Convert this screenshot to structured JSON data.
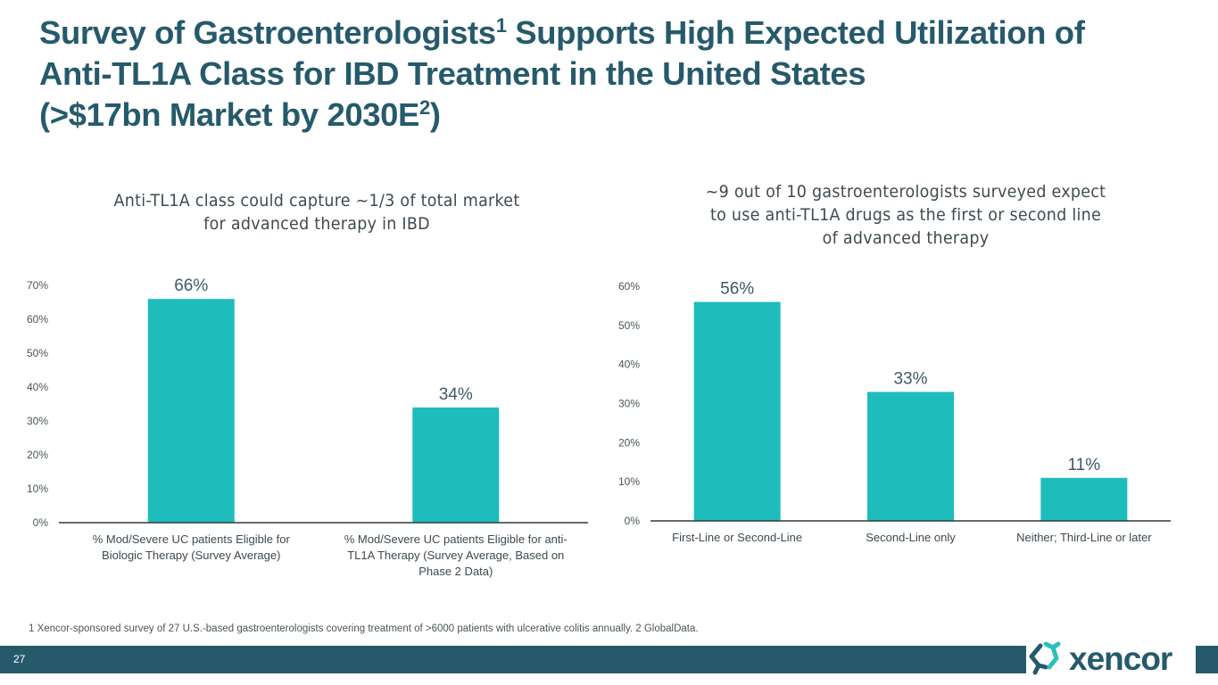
{
  "slide": {
    "title": {
      "line1_a": "Survey of Gastroenterologists",
      "line1_sup": "1",
      "line1_b": " Supports High Expected Utilization of",
      "line2": "Anti-TL1A Class for IBD Treatment in the United States",
      "line3_a": "(>$17bn Market by 2030E",
      "line3_sup": "2",
      "line3_b": ")"
    },
    "footnote": "1 Xencor-sponsored survey of 27 U.S.-based gastroenterologists covering treatment of >6000 patients with ulcerative colitis annually.  2 GlobalData.",
    "page_number": "27",
    "logo_text": "xencor",
    "colors": {
      "title": "#265a6b",
      "bar": "#1fbcbc",
      "footer_bar": "#265a6b",
      "logo_accent": "#2bbfbd"
    }
  },
  "chart_data": [
    {
      "type": "bar",
      "title_lines": [
        "Anti-TL1A class could capture ~1/3 of total market",
        "for advanced therapy in IBD"
      ],
      "categories": [
        [
          "%  Mod/Severe UC patients Eligible for",
          "Biologic Therapy (Survey Average)"
        ],
        [
          "%  Mod/Severe UC patients Eligible for anti-",
          "TL1A Therapy (Survey Average, Based on",
          "Phase 2 Data)"
        ]
      ],
      "values": [
        66,
        34
      ],
      "data_labels": [
        "66%",
        "34%"
      ],
      "ylim": [
        0,
        70
      ],
      "yticks": [
        0,
        10,
        20,
        30,
        40,
        50,
        60,
        70
      ],
      "ytick_labels": [
        "0%",
        "10%",
        "20%",
        "30%",
        "40%",
        "50%",
        "60%",
        "70%"
      ],
      "xlabel": "",
      "ylabel": "",
      "grid": false,
      "legend": "none"
    },
    {
      "type": "bar",
      "title_lines": [
        "~9 out of 10 gastroenterologists surveyed expect",
        "to use anti-TL1A drugs as the first or second line",
        "of advanced therapy"
      ],
      "categories": [
        [
          "First-Line or Second-Line"
        ],
        [
          "Second-Line only"
        ],
        [
          "Neither; Third-Line or later"
        ]
      ],
      "values": [
        56,
        33,
        11
      ],
      "data_labels": [
        "56%",
        "33%",
        "11%"
      ],
      "ylim": [
        0,
        60
      ],
      "yticks": [
        0,
        10,
        20,
        30,
        40,
        50,
        60
      ],
      "ytick_labels": [
        "0%",
        "10%",
        "20%",
        "30%",
        "40%",
        "50%",
        "60%"
      ],
      "xlabel": "",
      "ylabel": "",
      "grid": false,
      "legend": "none"
    }
  ]
}
